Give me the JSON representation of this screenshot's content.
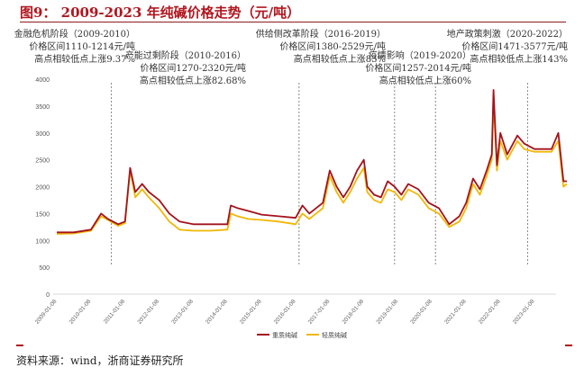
{
  "title": "图9：  2009-2023 年纯碱价格走势（元/吨）",
  "annotations": [
    {
      "lines": [
        "金融危机阶段（2009-2010）",
        "价格区间1110-1214元/吨",
        "高点相较低点上涨9.37%"
      ]
    },
    {
      "lines": [
        "产能过剩阶段（2010-2016）",
        "价格区间1270-2320元/吨",
        "高点相较低点上涨82.68%"
      ]
    },
    {
      "lines": [
        "供给侧改革阶段（2016-2019）",
        "价格区间1380-2529元/吨",
        "高点相较低点上涨83%"
      ]
    },
    {
      "lines": [
        "疫情影响（2019-2020）",
        "价格区间1257-2014元/吨",
        "高点相较低点上涨60%"
      ]
    },
    {
      "lines": [
        "地产政策刺激（2020-2022）",
        "价格区间1471-3577元/吨",
        "高点相较低点上涨143%"
      ]
    }
  ],
  "source": "资料来源：wind，浙商证券研究所",
  "chart_data": {
    "type": "line",
    "ylim": [
      0,
      4000
    ],
    "yticks": [
      "0",
      "500",
      "1000",
      "1500",
      "2000",
      "2500",
      "3000",
      "3500",
      "4000"
    ],
    "xlim": [
      2009.0,
      2023.95
    ],
    "xticks": [
      "2009-01-08",
      "2010-01-08",
      "2011-01-08",
      "2012-01-08",
      "2013-01-08",
      "2014-01-08",
      "2015-01-08",
      "2016-01-08",
      "2017-01-08",
      "2018-01-08",
      "2019-01-08",
      "2020-01-08",
      "2021-01-08",
      "2022-01-08",
      "2023-01-08"
    ],
    "phase_boundaries": [
      2010.6,
      2016.1,
      2018.9,
      2020.1,
      2022.8
    ],
    "legend_position": "bottom",
    "series": [
      {
        "name": "重质纯碱",
        "color": "#a3131c",
        "x": [
          2009.0,
          2009.5,
          2010.0,
          2010.3,
          2010.5,
          2010.8,
          2011.0,
          2011.15,
          2011.3,
          2011.5,
          2011.7,
          2012.0,
          2012.3,
          2012.6,
          2013.0,
          2013.5,
          2014.0,
          2014.1,
          2014.3,
          2014.6,
          2015.0,
          2015.5,
          2016.0,
          2016.2,
          2016.4,
          2016.6,
          2016.8,
          2017.0,
          2017.2,
          2017.4,
          2017.6,
          2017.8,
          2018.0,
          2018.1,
          2018.3,
          2018.5,
          2018.7,
          2018.9,
          2019.1,
          2019.3,
          2019.6,
          2019.9,
          2020.2,
          2020.5,
          2020.8,
          2021.0,
          2021.2,
          2021.4,
          2021.6,
          2021.75,
          2021.8,
          2021.9,
          2022.0,
          2022.2,
          2022.5,
          2022.7,
          2023.0,
          2023.5,
          2023.7,
          2023.85,
          2023.95
        ],
        "values": [
          1150,
          1150,
          1200,
          1500,
          1400,
          1300,
          1350,
          2350,
          1900,
          2050,
          1900,
          1750,
          1500,
          1350,
          1300,
          1300,
          1300,
          1650,
          1600,
          1550,
          1480,
          1450,
          1420,
          1650,
          1500,
          1600,
          1700,
          2300,
          2000,
          1800,
          2000,
          2300,
          2500,
          2000,
          1850,
          1800,
          2100,
          2000,
          1850,
          2050,
          1950,
          1700,
          1600,
          1300,
          1450,
          1700,
          2150,
          1950,
          2300,
          2600,
          3800,
          2400,
          3000,
          2600,
          2950,
          2800,
          2700,
          2700,
          3000,
          2100,
          2100
        ]
      },
      {
        "name": "轻质纯碱",
        "color": "#f2b705",
        "x": [
          2009.0,
          2009.5,
          2010.0,
          2010.3,
          2010.5,
          2010.8,
          2011.0,
          2011.15,
          2011.3,
          2011.5,
          2011.7,
          2012.0,
          2012.3,
          2012.6,
          2013.0,
          2013.5,
          2014.0,
          2014.1,
          2014.3,
          2014.6,
          2015.0,
          2015.5,
          2016.0,
          2016.2,
          2016.4,
          2016.6,
          2016.8,
          2017.0,
          2017.2,
          2017.4,
          2017.6,
          2017.8,
          2018.0,
          2018.1,
          2018.3,
          2018.5,
          2018.7,
          2018.9,
          2019.1,
          2019.3,
          2019.6,
          2019.9,
          2020.2,
          2020.5,
          2020.8,
          2021.0,
          2021.2,
          2021.4,
          2021.6,
          2021.75,
          2021.8,
          2021.9,
          2022.0,
          2022.2,
          2022.5,
          2022.7,
          2023.0,
          2023.5,
          2023.7,
          2023.85,
          2023.95
        ],
        "values": [
          1120,
          1130,
          1180,
          1450,
          1380,
          1270,
          1320,
          2300,
          1800,
          1950,
          1800,
          1600,
          1350,
          1200,
          1180,
          1180,
          1200,
          1500,
          1450,
          1400,
          1380,
          1350,
          1300,
          1500,
          1400,
          1500,
          1600,
          2200,
          1900,
          1700,
          1900,
          2150,
          2350,
          1900,
          1750,
          1700,
          1950,
          1900,
          1750,
          1950,
          1850,
          1600,
          1500,
          1250,
          1350,
          1600,
          2050,
          1850,
          2200,
          2500,
          3600,
          2300,
          2850,
          2500,
          2850,
          2700,
          2650,
          2650,
          2850,
          2000,
          2050
        ]
      }
    ]
  }
}
